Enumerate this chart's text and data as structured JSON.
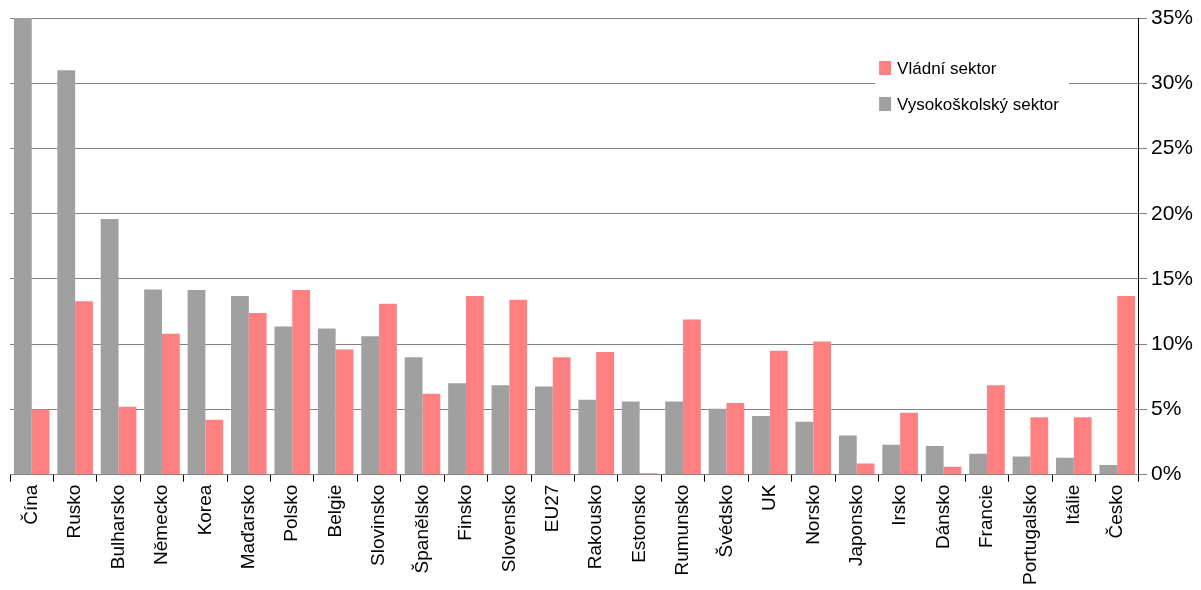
{
  "chart_data": {
    "type": "bar",
    "categories": [
      "Čína",
      "Rusko",
      "Bulharsko",
      "Německo",
      "Korea",
      "Maďarsko",
      "Polsko",
      "Belgie",
      "Slovinsko",
      "Španělsko",
      "Finsko",
      "Slovensko",
      "EU27",
      "Rakousko",
      "Estonsko",
      "Rumunsko",
      "Švédsko",
      "UK",
      "Norsko",
      "Japonsko",
      "Irsko",
      "Dánsko",
      "Francie",
      "Portugalsko",
      "Itálie",
      "Česko"
    ],
    "series": [
      {
        "name": "Vysokoškolský sektor",
        "color": "#a0a0a0",
        "values": [
          35,
          31,
          19.6,
          14.2,
          14.15,
          13.7,
          11.35,
          11.2,
          10.6,
          9.0,
          7.0,
          6.85,
          6.75,
          5.75,
          5.6,
          5.6,
          5.05,
          4.5,
          4.05,
          3.0,
          2.3,
          2.2,
          1.6,
          1.4,
          1.3,
          0.75
        ]
      },
      {
        "name": "Vládní sektor",
        "color": "#ff8080",
        "values": [
          5.0,
          13.3,
          5.2,
          10.8,
          4.2,
          12.4,
          14.15,
          9.6,
          13.1,
          6.2,
          13.7,
          13.4,
          9.0,
          9.4,
          0.1,
          11.9,
          5.5,
          9.5,
          10.2,
          0.85,
          4.75,
          0.6,
          6.85,
          4.4,
          4.4,
          13.7
        ]
      }
    ],
    "ylim": [
      0,
      35
    ],
    "yticks": [
      {
        "value": 0,
        "label": "0%"
      },
      {
        "value": 5,
        "label": "5%"
      },
      {
        "value": 10,
        "label": "10%"
      },
      {
        "value": 15,
        "label": "15%"
      },
      {
        "value": 20,
        "label": "20%"
      },
      {
        "value": 25,
        "label": "25%"
      },
      {
        "value": 30,
        "label": "30%"
      },
      {
        "value": 35,
        "label": "35%"
      }
    ],
    "grid": "y",
    "legend": "top right"
  }
}
